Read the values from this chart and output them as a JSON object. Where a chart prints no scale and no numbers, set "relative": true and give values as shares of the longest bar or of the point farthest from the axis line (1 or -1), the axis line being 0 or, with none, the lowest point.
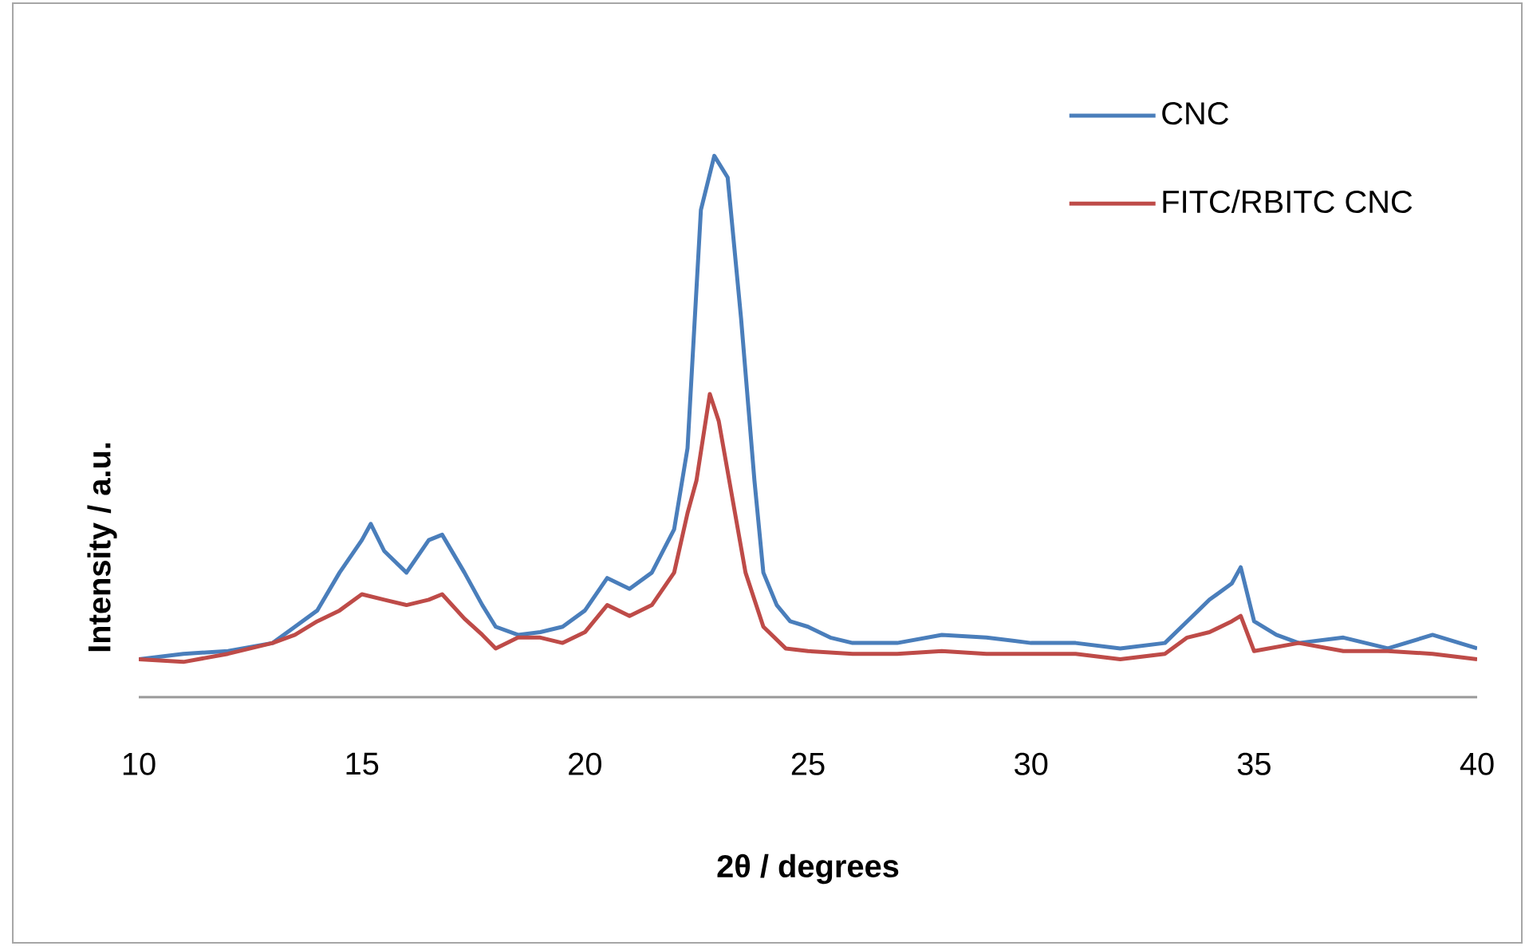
{
  "chart_data": {
    "type": "line",
    "relative": true,
    "xlabel": "2θ / degrees",
    "ylabel": "Intensity  / a.u.",
    "xlim": [
      10,
      40
    ],
    "xticks": [
      10,
      15,
      20,
      25,
      30,
      35,
      40
    ],
    "grid": false,
    "legend": "top right",
    "marker": "none",
    "line_style": "solid",
    "series": [
      {
        "name": "CNC",
        "color": "#4a7ebb",
        "x": [
          10,
          11,
          12,
          13,
          13.5,
          14,
          14.5,
          15,
          15.2,
          15.5,
          16,
          16.5,
          16.8,
          17.3,
          17.7,
          18,
          18.5,
          19,
          19.5,
          20,
          20.5,
          21,
          21.5,
          22,
          22.3,
          22.6,
          22.9,
          23.2,
          23.5,
          23.8,
          24,
          24.3,
          24.6,
          25,
          25.5,
          26,
          27,
          28,
          29,
          30,
          31,
          32,
          33,
          33.5,
          34,
          34.5,
          34.7,
          35,
          35.5,
          36,
          37,
          38,
          39,
          40
        ],
        "values": [
          0.07,
          0.08,
          0.085,
          0.1,
          0.13,
          0.16,
          0.23,
          0.29,
          0.32,
          0.27,
          0.23,
          0.29,
          0.3,
          0.23,
          0.17,
          0.13,
          0.115,
          0.12,
          0.13,
          0.16,
          0.22,
          0.2,
          0.23,
          0.31,
          0.46,
          0.9,
          1.0,
          0.96,
          0.7,
          0.4,
          0.23,
          0.17,
          0.14,
          0.13,
          0.11,
          0.1,
          0.1,
          0.115,
          0.11,
          0.1,
          0.1,
          0.09,
          0.1,
          0.14,
          0.18,
          0.21,
          0.24,
          0.14,
          0.115,
          0.1,
          0.11,
          0.09,
          0.115,
          0.09
        ]
      },
      {
        "name": "FITC/RBITC CNC",
        "color": "#be4b48",
        "x": [
          10,
          11,
          12,
          13,
          13.5,
          14,
          14.5,
          15,
          15.5,
          16,
          16.5,
          16.8,
          17.3,
          17.7,
          18,
          18.5,
          19,
          19.5,
          20,
          20.5,
          21,
          21.5,
          22,
          22.3,
          22.5,
          22.8,
          23,
          23.3,
          23.6,
          24,
          24.5,
          25,
          26,
          27,
          28,
          29,
          30,
          31,
          32,
          33,
          33.5,
          34,
          34.5,
          34.7,
          35,
          36,
          37,
          38,
          39,
          40
        ],
        "values": [
          0.07,
          0.065,
          0.08,
          0.1,
          0.115,
          0.14,
          0.16,
          0.19,
          0.18,
          0.17,
          0.18,
          0.19,
          0.145,
          0.115,
          0.09,
          0.11,
          0.11,
          0.1,
          0.12,
          0.17,
          0.15,
          0.17,
          0.23,
          0.34,
          0.4,
          0.56,
          0.51,
          0.37,
          0.23,
          0.13,
          0.09,
          0.085,
          0.08,
          0.08,
          0.085,
          0.08,
          0.08,
          0.08,
          0.07,
          0.08,
          0.11,
          0.12,
          0.14,
          0.15,
          0.085,
          0.1,
          0.085,
          0.085,
          0.08,
          0.07
        ]
      }
    ]
  }
}
